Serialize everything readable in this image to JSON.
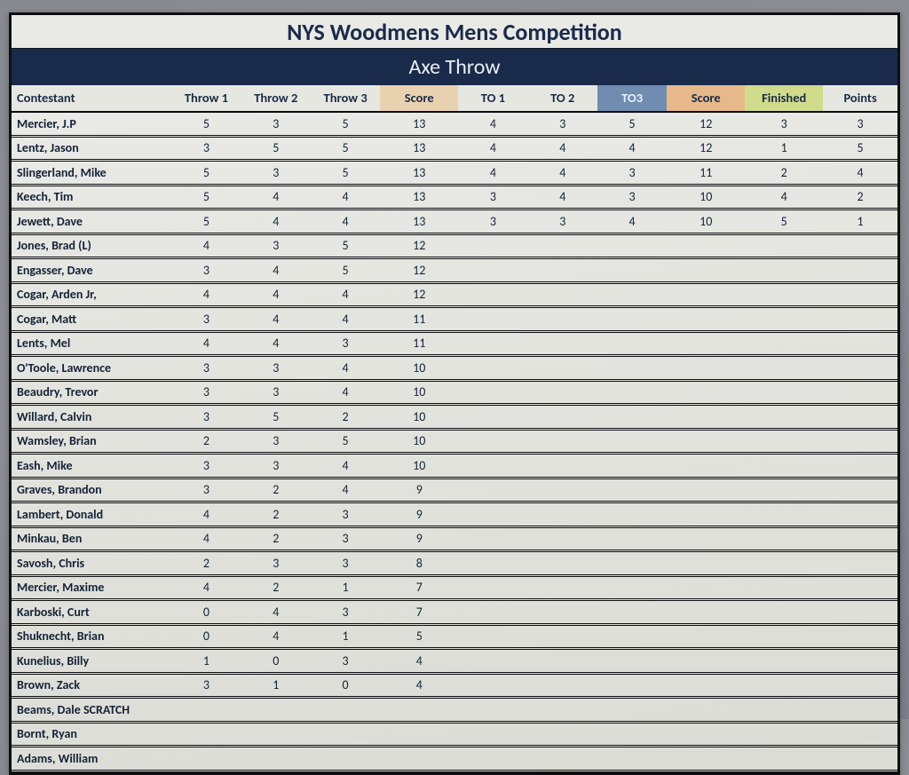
{
  "title": "NYS Woodmens Mens Competition",
  "event": "Axe Throw",
  "columns": {
    "contestant": "Contestant",
    "throw1": "Throw 1",
    "throw2": "Throw 2",
    "throw3": "Throw 3",
    "score1": "Score",
    "to1": "TO 1",
    "to2": "TO 2",
    "to3": "TO3",
    "score2": "Score",
    "finished": "Finished",
    "points": "Points"
  },
  "rows": [
    {
      "name": "Mercier, J.P",
      "t1": "5",
      "t2": "3",
      "t3": "5",
      "s1": "13",
      "to1": "4",
      "to2": "3",
      "to3": "5",
      "s2": "12",
      "fin": "3",
      "pts": "3"
    },
    {
      "name": "Lentz, Jason",
      "t1": "3",
      "t2": "5",
      "t3": "5",
      "s1": "13",
      "to1": "4",
      "to2": "4",
      "to3": "4",
      "s2": "12",
      "fin": "1",
      "pts": "5"
    },
    {
      "name": "Slingerland, Mike",
      "t1": "5",
      "t2": "3",
      "t3": "5",
      "s1": "13",
      "to1": "4",
      "to2": "4",
      "to3": "3",
      "s2": "11",
      "fin": "2",
      "pts": "4"
    },
    {
      "name": "Keech, Tim",
      "t1": "5",
      "t2": "4",
      "t3": "4",
      "s1": "13",
      "to1": "3",
      "to2": "4",
      "to3": "3",
      "s2": "10",
      "fin": "4",
      "pts": "2"
    },
    {
      "name": "Jewett, Dave",
      "t1": "5",
      "t2": "4",
      "t3": "4",
      "s1": "13",
      "to1": "3",
      "to2": "3",
      "to3": "4",
      "s2": "10",
      "fin": "5",
      "pts": "1"
    },
    {
      "name": "Jones, Brad (L)",
      "t1": "4",
      "t2": "3",
      "t3": "5",
      "s1": "12",
      "to1": "",
      "to2": "",
      "to3": "",
      "s2": "",
      "fin": "",
      "pts": ""
    },
    {
      "name": "Engasser, Dave",
      "t1": "3",
      "t2": "4",
      "t3": "5",
      "s1": "12",
      "to1": "",
      "to2": "",
      "to3": "",
      "s2": "",
      "fin": "",
      "pts": ""
    },
    {
      "name": "Cogar, Arden Jr,",
      "t1": "4",
      "t2": "4",
      "t3": "4",
      "s1": "12",
      "to1": "",
      "to2": "",
      "to3": "",
      "s2": "",
      "fin": "",
      "pts": ""
    },
    {
      "name": "Cogar, Matt",
      "t1": "3",
      "t2": "4",
      "t3": "4",
      "s1": "11",
      "to1": "",
      "to2": "",
      "to3": "",
      "s2": "",
      "fin": "",
      "pts": ""
    },
    {
      "name": "Lents, Mel",
      "t1": "4",
      "t2": "4",
      "t3": "3",
      "s1": "11",
      "to1": "",
      "to2": "",
      "to3": "",
      "s2": "",
      "fin": "",
      "pts": ""
    },
    {
      "name": "O'Toole, Lawrence",
      "t1": "3",
      "t2": "3",
      "t3": "4",
      "s1": "10",
      "to1": "",
      "to2": "",
      "to3": "",
      "s2": "",
      "fin": "",
      "pts": ""
    },
    {
      "name": "Beaudry, Trevor",
      "t1": "3",
      "t2": "3",
      "t3": "4",
      "s1": "10",
      "to1": "",
      "to2": "",
      "to3": "",
      "s2": "",
      "fin": "",
      "pts": ""
    },
    {
      "name": "Willard, Calvin",
      "t1": "3",
      "t2": "5",
      "t3": "2",
      "s1": "10",
      "to1": "",
      "to2": "",
      "to3": "",
      "s2": "",
      "fin": "",
      "pts": ""
    },
    {
      "name": "Wamsley, Brian",
      "t1": "2",
      "t2": "3",
      "t3": "5",
      "s1": "10",
      "to1": "",
      "to2": "",
      "to3": "",
      "s2": "",
      "fin": "",
      "pts": ""
    },
    {
      "name": "Eash, Mike",
      "t1": "3",
      "t2": "3",
      "t3": "4",
      "s1": "10",
      "to1": "",
      "to2": "",
      "to3": "",
      "s2": "",
      "fin": "",
      "pts": ""
    },
    {
      "name": "Graves, Brandon",
      "t1": "3",
      "t2": "2",
      "t3": "4",
      "s1": "9",
      "to1": "",
      "to2": "",
      "to3": "",
      "s2": "",
      "fin": "",
      "pts": ""
    },
    {
      "name": "Lambert, Donald",
      "t1": "4",
      "t2": "2",
      "t3": "3",
      "s1": "9",
      "to1": "",
      "to2": "",
      "to3": "",
      "s2": "",
      "fin": "",
      "pts": ""
    },
    {
      "name": "Minkau, Ben",
      "t1": "4",
      "t2": "2",
      "t3": "3",
      "s1": "9",
      "to1": "",
      "to2": "",
      "to3": "",
      "s2": "",
      "fin": "",
      "pts": ""
    },
    {
      "name": "Savosh, Chris",
      "t1": "2",
      "t2": "3",
      "t3": "3",
      "s1": "8",
      "to1": "",
      "to2": "",
      "to3": "",
      "s2": "",
      "fin": "",
      "pts": ""
    },
    {
      "name": "Mercier, Maxime",
      "t1": "4",
      "t2": "2",
      "t3": "1",
      "s1": "7",
      "to1": "",
      "to2": "",
      "to3": "",
      "s2": "",
      "fin": "",
      "pts": ""
    },
    {
      "name": "Karboski, Curt",
      "t1": "0",
      "t2": "4",
      "t3": "3",
      "s1": "7",
      "to1": "",
      "to2": "",
      "to3": "",
      "s2": "",
      "fin": "",
      "pts": ""
    },
    {
      "name": "Shuknecht, Brian",
      "t1": "0",
      "t2": "4",
      "t3": "1",
      "s1": "5",
      "to1": "",
      "to2": "",
      "to3": "",
      "s2": "",
      "fin": "",
      "pts": ""
    },
    {
      "name": "Kunelius, Billy",
      "t1": "1",
      "t2": "0",
      "t3": "3",
      "s1": "4",
      "to1": "",
      "to2": "",
      "to3": "",
      "s2": "",
      "fin": "",
      "pts": ""
    },
    {
      "name": "Brown, Zack",
      "t1": "3",
      "t2": "1",
      "t3": "0",
      "s1": "4",
      "to1": "",
      "to2": "",
      "to3": "",
      "s2": "",
      "fin": "",
      "pts": ""
    },
    {
      "name": "Beams, Dale SCRATCH",
      "t1": "",
      "t2": "",
      "t3": "",
      "s1": "",
      "to1": "",
      "to2": "",
      "to3": "",
      "s2": "",
      "fin": "",
      "pts": ""
    },
    {
      "name": "Bornt, Ryan",
      "t1": "",
      "t2": "",
      "t3": "",
      "s1": "",
      "to1": "",
      "to2": "",
      "to3": "",
      "s2": "",
      "fin": "",
      "pts": ""
    },
    {
      "name": "Adams, William",
      "t1": "",
      "t2": "",
      "t3": "",
      "s1": "",
      "to1": "",
      "to2": "",
      "to3": "",
      "s2": "",
      "fin": "",
      "pts": ""
    }
  ],
  "colors": {
    "header_bg": "#1a2a4a",
    "score1_bg": "#e9d2b0",
    "score2_bg": "#e7b98a",
    "finished_bg": "#d0db8c"
  }
}
